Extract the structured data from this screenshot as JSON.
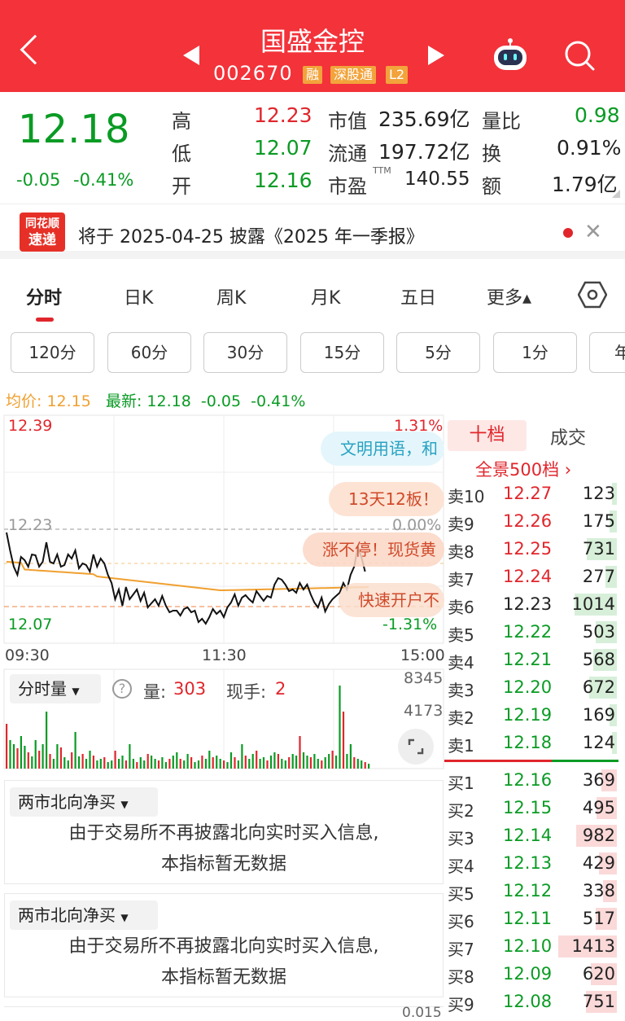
{
  "header": {
    "title": "国盛金控",
    "code": "002670",
    "tags": [
      "融",
      "深股通",
      "L2"
    ]
  },
  "quote": {
    "price": "12.18",
    "change": "-0.05",
    "change_pct": "-0.41%",
    "stats": [
      {
        "label": "高",
        "value": "12.23"
      },
      {
        "label": "低",
        "value": "12.07"
      },
      {
        "label": "开",
        "value": "12.16"
      },
      {
        "label": "市值",
        "value": "235.69亿"
      },
      {
        "label": "流通",
        "value": "197.72亿"
      },
      {
        "label": "市盈",
        "sup": "TTM",
        "value": "140.55"
      },
      {
        "label": "量比",
        "value": "0.98"
      },
      {
        "label": "换",
        "value": "0.91%"
      },
      {
        "label": "额",
        "value": "1.79亿"
      }
    ]
  },
  "news": {
    "logo_top": "同花顺",
    "logo_bottom": "速递",
    "text": "将于 2025-04-25 披露《2025 年一季报》"
  },
  "tabs": [
    "分时",
    "日K",
    "周K",
    "月K",
    "五日",
    "更多▴"
  ],
  "period_pills": [
    "120分",
    "60分",
    "30分",
    "15分",
    "5分",
    "1分",
    "年"
  ],
  "chart_info": {
    "avg_label": "均价: 12.15",
    "latest_label": "最新: 12.18",
    "change": "-0.05",
    "pct": "-0.41%"
  },
  "price_axis": {
    "top": "12.39",
    "mid": "12.23",
    "bottom": "12.07",
    "top_pct": "1.31%",
    "mid_pct": "0.00%",
    "bottom_pct": "-1.31%"
  },
  "time_axis": [
    "09:30",
    "11:30",
    "15:00"
  ],
  "bubbles": [
    "文明用语，和",
    "13天12板！",
    "涨不停！现货黄",
    "快速开户不"
  ],
  "volume": {
    "dropdown": "分时量",
    "vol_label": "量:",
    "vol": "303",
    "hand_label": "现手:",
    "hand": "2",
    "axis_top": "8345",
    "axis_mid": "4173"
  },
  "panels": [
    {
      "dropdown": "两市北向净买",
      "msg1": "由于交易所不再披露北向实时买入信息,",
      "msg2": "本指标暂无数据"
    },
    {
      "dropdown": "两市北向净买",
      "msg1": "由于交易所不再披露北向实时买入信息,",
      "msg2": "本指标暂无数据"
    }
  ],
  "bottom_axis": "0.015",
  "orderbook": {
    "tabs": [
      "十档",
      "成交"
    ],
    "full": "全景500档 ›",
    "sells": [
      {
        "k": "卖10",
        "p": "12.27",
        "v": "123"
      },
      {
        "k": "卖9",
        "p": "12.26",
        "v": "175"
      },
      {
        "k": "卖8",
        "p": "12.25",
        "v": "731"
      },
      {
        "k": "卖7",
        "p": "12.24",
        "v": "277"
      },
      {
        "k": "卖6",
        "p": "12.23",
        "v": "1014"
      },
      {
        "k": "卖5",
        "p": "12.22",
        "v": "503"
      },
      {
        "k": "卖4",
        "p": "12.21",
        "v": "568"
      },
      {
        "k": "卖3",
        "p": "12.20",
        "v": "672"
      },
      {
        "k": "卖2",
        "p": "12.19",
        "v": "169"
      },
      {
        "k": "卖1",
        "p": "12.18",
        "v": "124"
      }
    ],
    "buys": [
      {
        "k": "买1",
        "p": "12.16",
        "v": "369"
      },
      {
        "k": "买2",
        "p": "12.15",
        "v": "495"
      },
      {
        "k": "买3",
        "p": "12.14",
        "v": "982"
      },
      {
        "k": "买4",
        "p": "12.13",
        "v": "429"
      },
      {
        "k": "买5",
        "p": "12.12",
        "v": "338"
      },
      {
        "k": "买6",
        "p": "12.11",
        "v": "517"
      },
      {
        "k": "买7",
        "p": "12.10",
        "v": "1413"
      },
      {
        "k": "买8",
        "p": "12.09",
        "v": "620"
      },
      {
        "k": "买9",
        "p": "12.08",
        "v": "751"
      }
    ]
  },
  "colors": {
    "header": "#f3323a",
    "up": "#e0262c",
    "down": "#0a9b24",
    "avg_line": "#f0a030"
  }
}
